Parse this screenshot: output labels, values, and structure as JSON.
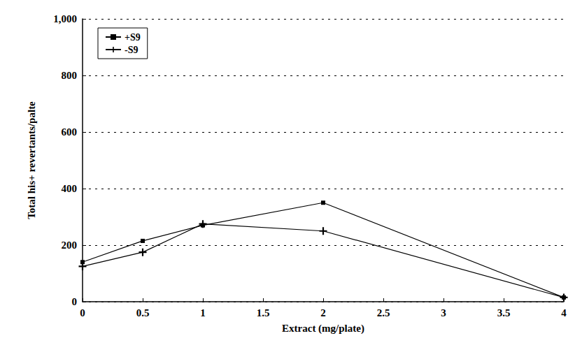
{
  "chart_data": {
    "type": "line",
    "x_label": "Extract (mg/plate)",
    "y_label": "Total his+ revertants/palte",
    "xlim": [
      0,
      4
    ],
    "xticks": [
      0,
      0.5,
      1,
      1.5,
      2,
      2.5,
      3,
      3.5,
      4
    ],
    "ylim": [
      0,
      1000
    ],
    "yticks": [
      0,
      200,
      400,
      600,
      800,
      {
        "value": 1000,
        "label": "1,000"
      }
    ],
    "grid": true,
    "legend": "upper left",
    "series": [
      {
        "name": "+S9",
        "color": "#000000",
        "marker": "square",
        "x": [
          0,
          0.5,
          1,
          2,
          4
        ],
        "values": [
          140,
          215,
          270,
          350,
          15
        ]
      },
      {
        "name": "-S9",
        "color": "#000000",
        "marker": "plus",
        "x": [
          0,
          0.5,
          1,
          2,
          4
        ],
        "values": [
          125,
          175,
          275,
          250,
          15
        ]
      }
    ]
  }
}
